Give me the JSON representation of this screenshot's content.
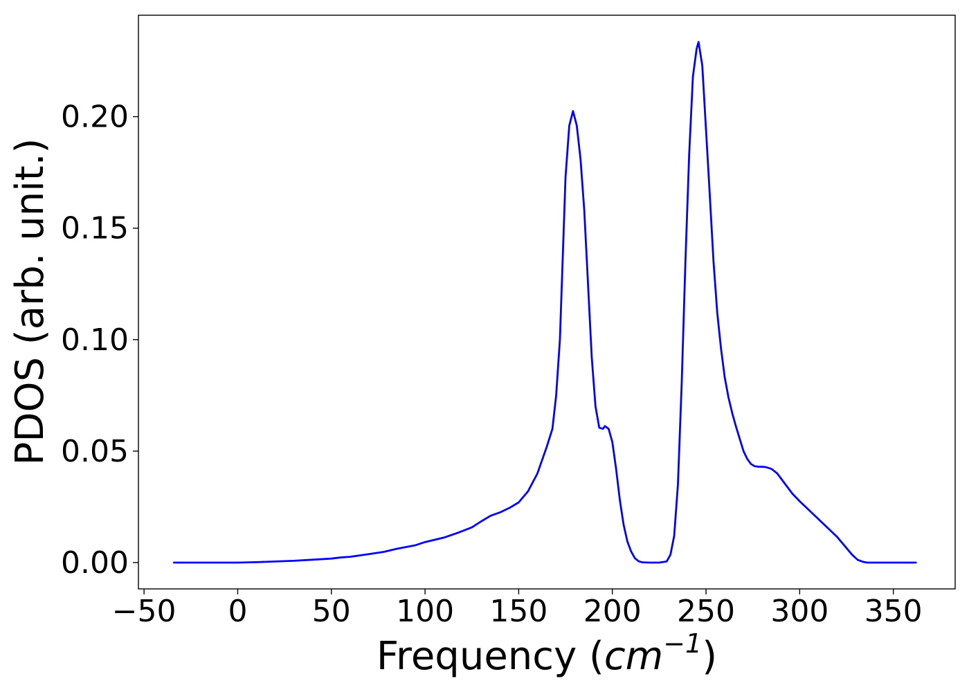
{
  "chart_data": {
    "type": "line",
    "title": "",
    "xlabel": {
      "prefix": "Frequency (",
      "italic": "cm",
      "superscript": "−1",
      "suffix": ")"
    },
    "ylabel": "PDOS (arb. unit.)",
    "xlim": [
      -53,
      383
    ],
    "ylim": [
      -0.0118,
      0.2455
    ],
    "xticks": [
      -50,
      0,
      50,
      100,
      150,
      200,
      250,
      300,
      350
    ],
    "xtick_labels": [
      "−50",
      "0",
      "50",
      "100",
      "150",
      "200",
      "250",
      "300",
      "350"
    ],
    "yticks": [
      0.0,
      0.05,
      0.1,
      0.15,
      0.2
    ],
    "ytick_labels": [
      "0.00",
      "0.05",
      "0.10",
      "0.15",
      "0.20"
    ],
    "grid": false,
    "colors": {
      "line": "#0000ff",
      "axes": "#000000",
      "background": "#ffffff"
    },
    "series": [
      {
        "x": [
          -34,
          -20,
          0,
          10,
          20,
          30,
          40,
          50,
          55,
          60,
          70,
          78,
          85,
          95,
          100,
          110,
          118,
          125,
          130,
          135,
          140,
          145,
          150,
          155,
          160,
          165,
          168,
          170,
          172,
          175,
          177,
          179,
          181,
          183,
          185,
          187,
          189,
          191,
          193,
          195,
          196,
          198,
          200,
          202,
          204,
          206,
          208,
          210,
          212,
          214,
          216,
          220,
          225,
          229,
          231,
          233,
          235,
          237,
          239,
          241,
          243,
          245,
          246,
          248,
          250,
          252,
          254,
          256,
          258,
          260,
          262,
          264,
          266,
          268,
          270,
          272,
          274,
          276,
          278,
          280,
          282,
          285,
          288,
          292,
          296,
          300,
          305,
          310,
          315,
          320,
          324,
          328,
          331,
          334,
          336,
          340,
          350,
          362
        ],
        "y": [
          0.0,
          0.0,
          0.0,
          0.0002,
          0.0005,
          0.0008,
          0.0013,
          0.0018,
          0.0023,
          0.0026,
          0.0038,
          0.0048,
          0.0062,
          0.0078,
          0.0092,
          0.0112,
          0.0135,
          0.0158,
          0.0185,
          0.021,
          0.0225,
          0.0245,
          0.027,
          0.032,
          0.04,
          0.052,
          0.06,
          0.075,
          0.1,
          0.173,
          0.196,
          0.2025,
          0.196,
          0.181,
          0.158,
          0.125,
          0.092,
          0.07,
          0.0605,
          0.06,
          0.0612,
          0.06,
          0.054,
          0.042,
          0.028,
          0.017,
          0.0095,
          0.005,
          0.002,
          0.0006,
          0.0001,
          0.0,
          0.0,
          0.0005,
          0.0035,
          0.012,
          0.035,
          0.08,
          0.135,
          0.183,
          0.218,
          0.2305,
          0.2335,
          0.223,
          0.194,
          0.165,
          0.135,
          0.112,
          0.096,
          0.083,
          0.074,
          0.067,
          0.061,
          0.0555,
          0.05,
          0.0465,
          0.0442,
          0.0432,
          0.043,
          0.043,
          0.0428,
          0.042,
          0.04,
          0.0355,
          0.031,
          0.0275,
          0.0235,
          0.0195,
          0.0155,
          0.0115,
          0.0075,
          0.0035,
          0.0012,
          0.0003,
          0.0,
          0.0,
          0.0,
          0.0
        ]
      }
    ]
  }
}
